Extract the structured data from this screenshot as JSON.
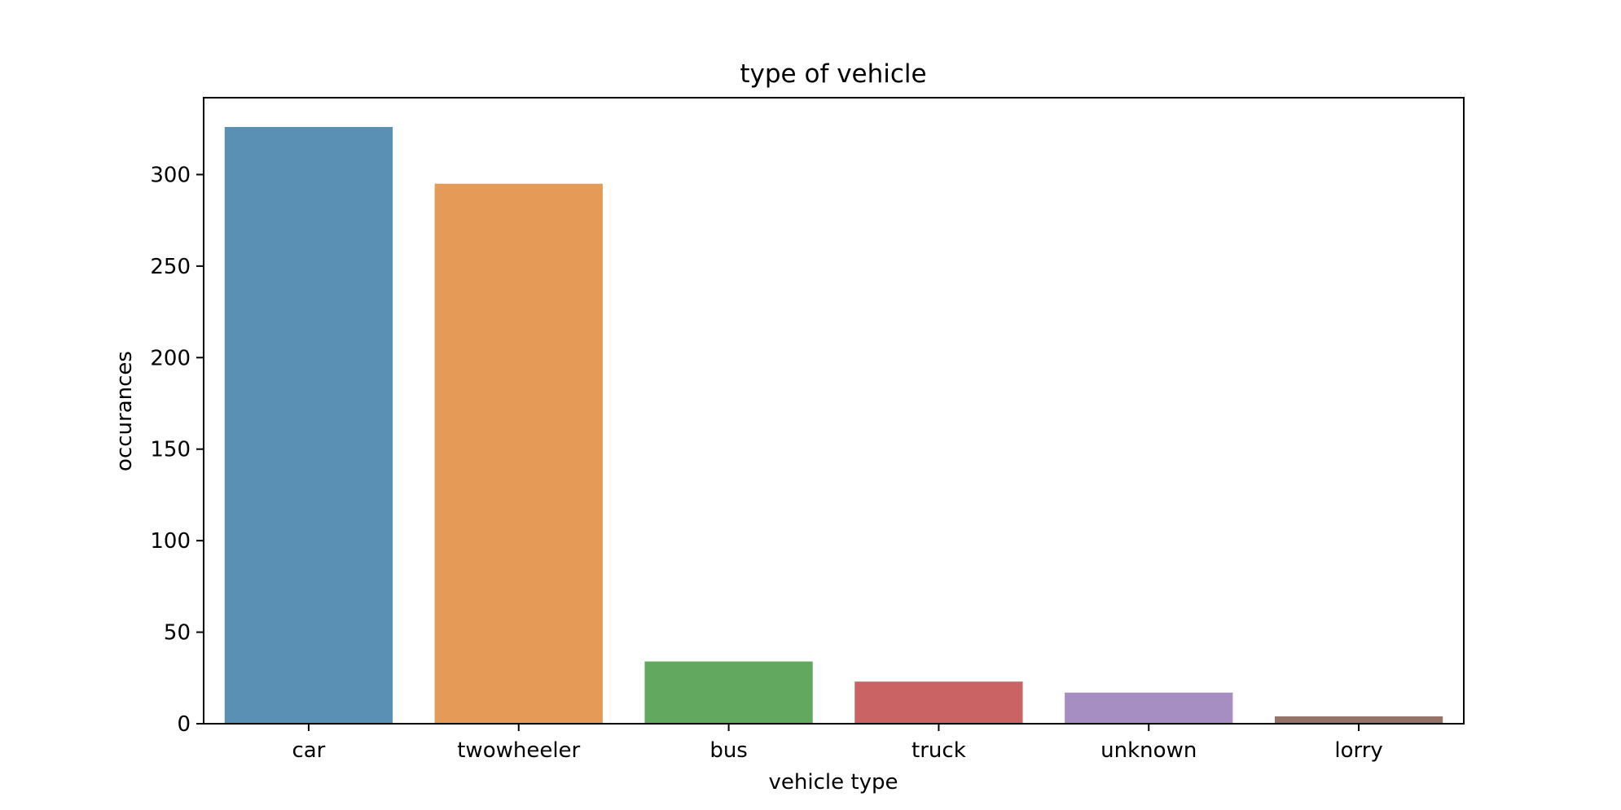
{
  "chart_data": {
    "type": "bar",
    "title": "type of vehicle",
    "xlabel": "vehicle type",
    "ylabel": "occurances",
    "categories": [
      "car",
      "twowheeler",
      "bus",
      "truck",
      "unknown",
      "lorry"
    ],
    "values": [
      326,
      295,
      34,
      23,
      17,
      4
    ],
    "colors": [
      "#5b90b5",
      "#e69a57",
      "#62a85f",
      "#c96364",
      "#a78ec2",
      "#957368"
    ],
    "ylim": [
      0,
      342
    ],
    "yticks": [
      0,
      50,
      100,
      150,
      200,
      250,
      300
    ],
    "yticks_labels": [
      "0",
      "50",
      "100",
      "150",
      "200",
      "250",
      "300"
    ],
    "grid": false,
    "legend": false
  }
}
